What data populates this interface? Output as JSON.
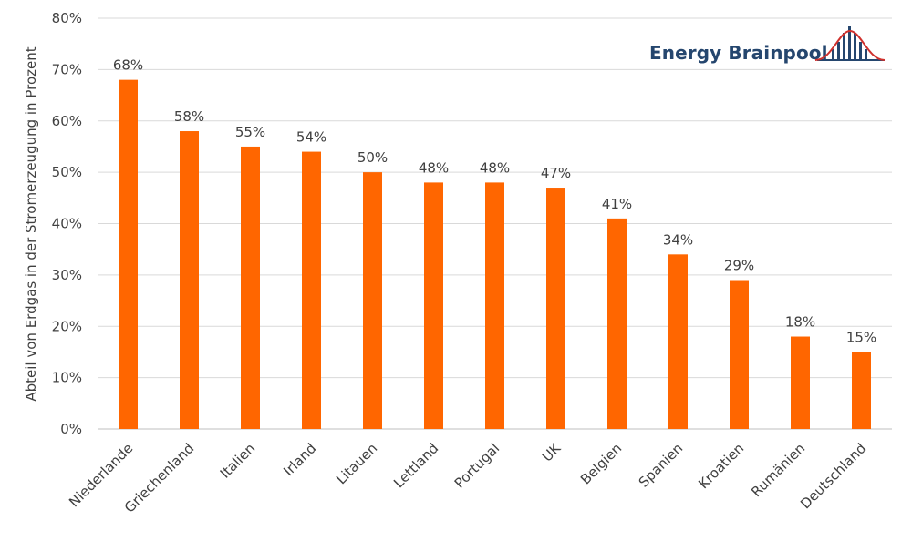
{
  "brand": {
    "name": "Energy Brainpool",
    "text_color": "#25466e",
    "curve_color": "#d0312d"
  },
  "chart_data": {
    "type": "bar",
    "title": "",
    "xlabel": "",
    "ylabel": "Abteil von Erdgas in der Stromerzeugung in Prozent",
    "ylim": [
      0,
      80
    ],
    "yticks": [
      0,
      10,
      20,
      30,
      40,
      50,
      60,
      70,
      80
    ],
    "ytick_labels": [
      "0%",
      "10%",
      "20%",
      "30%",
      "40%",
      "50%",
      "60%",
      "70%",
      "80%"
    ],
    "grid": true,
    "bar_color": "#ff6600",
    "categories": [
      "Niederlande",
      "Griechenland",
      "Italien",
      "Irland",
      "Litauen",
      "Lettland",
      "Portugal",
      "UK",
      "Belgien",
      "Spanien",
      "Kroatien",
      "Rumänien",
      "Deutschland"
    ],
    "values": [
      68,
      58,
      55,
      54,
      50,
      48,
      48,
      47,
      41,
      34,
      29,
      18,
      15
    ],
    "data_labels": [
      "68%",
      "58%",
      "55%",
      "54%",
      "50%",
      "48%",
      "48%",
      "47%",
      "41%",
      "34%",
      "29%",
      "18%",
      "15%"
    ]
  }
}
